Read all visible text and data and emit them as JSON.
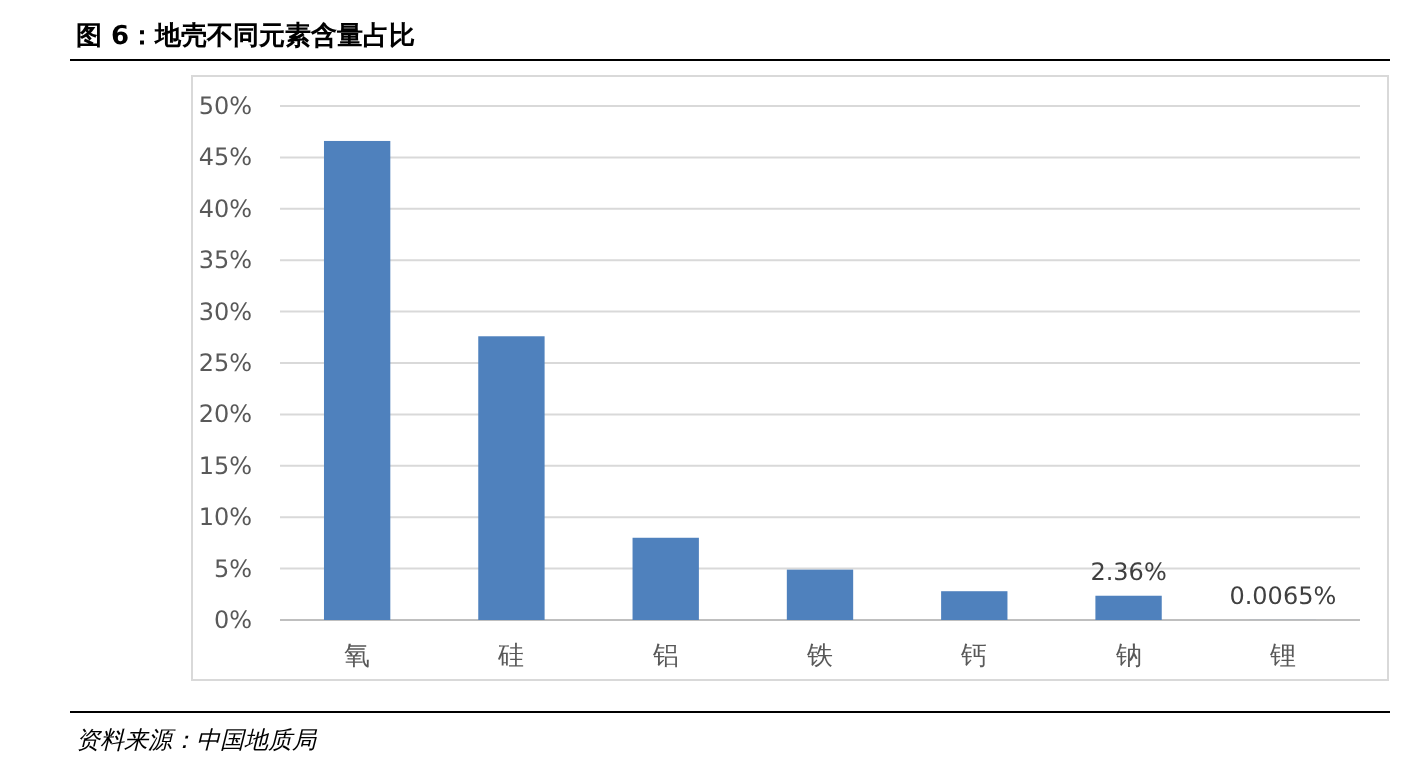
{
  "chart_data": {
    "type": "bar",
    "title": "图 6：地壳不同元素含量占比",
    "categories": [
      "氧",
      "硅",
      "铝",
      "铁",
      "钙",
      "钠",
      "锂"
    ],
    "values": [
      46.6,
      27.6,
      8.0,
      4.9,
      2.8,
      2.36,
      0.0065
    ],
    "value_labels": [
      null,
      null,
      null,
      null,
      null,
      "2.36%",
      "0.0065%"
    ],
    "color": "#4f81bd",
    "ylim": [
      0,
      50
    ],
    "yticks": [
      {
        "value": 0,
        "label": "0%"
      },
      {
        "value": 5,
        "label": "5%"
      },
      {
        "value": 10,
        "label": "10%"
      },
      {
        "value": 15,
        "label": "15%"
      },
      {
        "value": 20,
        "label": "20%"
      },
      {
        "value": 25,
        "label": "25%"
      },
      {
        "value": 30,
        "label": "30%"
      },
      {
        "value": 35,
        "label": "35%"
      },
      {
        "value": 40,
        "label": "40%"
      },
      {
        "value": 45,
        "label": "45%"
      },
      {
        "value": 50,
        "label": "50%"
      }
    ],
    "grid": "y",
    "annotations": [
      "资料来源：中国地质局"
    ]
  }
}
